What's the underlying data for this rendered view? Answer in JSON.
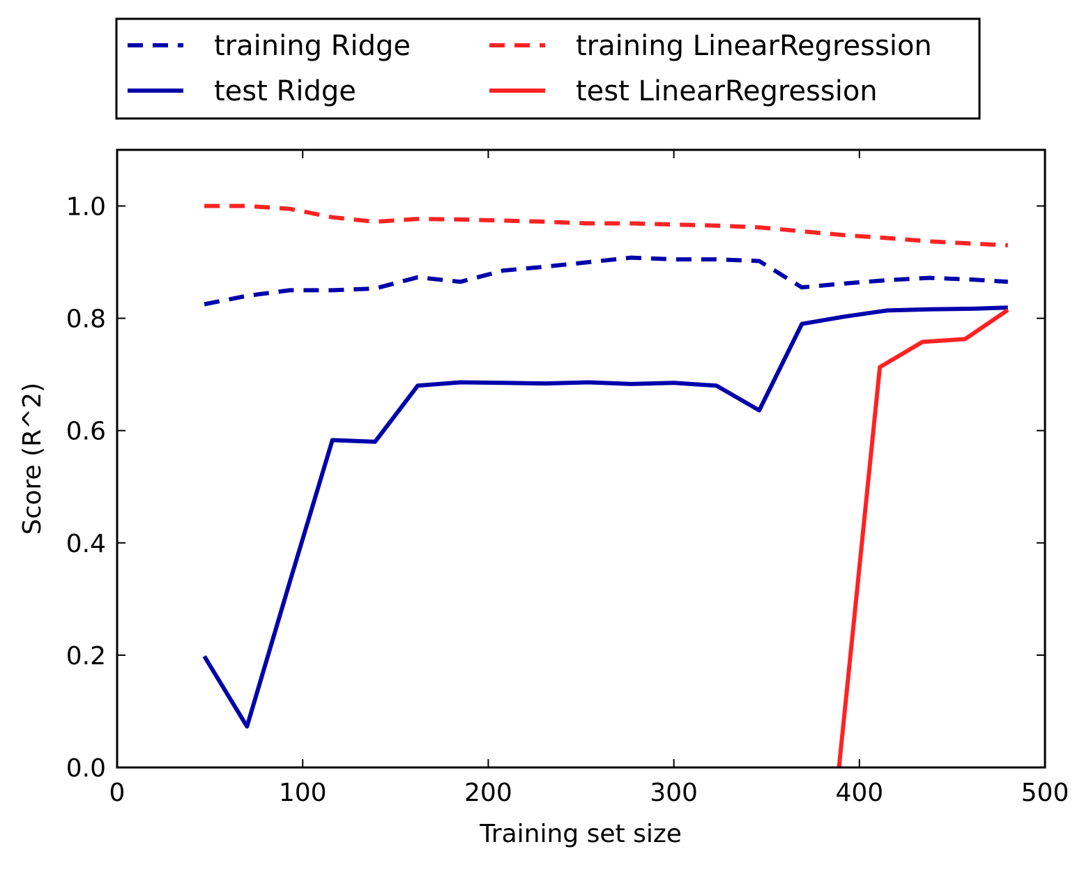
{
  "chart_data": {
    "type": "line",
    "title": "",
    "xlabel": "Training set size",
    "ylabel": "Score (R^2)",
    "xlim": [
      0,
      500
    ],
    "ylim": [
      0,
      1.1
    ],
    "xticks": [
      0,
      100,
      200,
      300,
      400,
      500
    ],
    "xtick_labels": [
      "0",
      "100",
      "200",
      "300",
      "400",
      "500"
    ],
    "yticks": [
      0.0,
      0.2,
      0.4,
      0.6,
      0.8,
      1.0
    ],
    "ytick_labels": [
      "0.0",
      "0.2",
      "0.4",
      "0.6",
      "0.8",
      "1.0"
    ],
    "grid": false,
    "legend_position": "above plot, two columns",
    "series": [
      {
        "name": "training Ridge",
        "color": "#0000aa",
        "style": "dashed",
        "x": [
          47,
          70,
          93,
          116,
          139,
          162,
          185,
          208,
          231,
          254,
          277,
          300,
          323,
          346,
          369,
          392,
          415,
          438,
          461,
          480
        ],
        "y": [
          0.825,
          0.84,
          0.85,
          0.85,
          0.853,
          0.873,
          0.865,
          0.885,
          0.892,
          0.9,
          0.908,
          0.905,
          0.905,
          0.902,
          0.855,
          0.862,
          0.868,
          0.872,
          0.869,
          0.865
        ]
      },
      {
        "name": "test Ridge",
        "color": "#0000aa",
        "style": "solid",
        "x": [
          47,
          70,
          93,
          116,
          139,
          162,
          185,
          208,
          231,
          254,
          277,
          300,
          323,
          346,
          369,
          392,
          415,
          438,
          461,
          480
        ],
        "y": [
          0.198,
          0.073,
          0.33,
          0.583,
          0.58,
          0.68,
          0.686,
          0.685,
          0.684,
          0.686,
          0.683,
          0.685,
          0.68,
          0.636,
          0.79,
          0.803,
          0.814,
          0.816,
          0.817,
          0.819
        ]
      },
      {
        "name": "training LinearRegression",
        "color": "#ff2222",
        "style": "dashed",
        "x": [
          47,
          70,
          93,
          116,
          139,
          162,
          185,
          208,
          231,
          254,
          277,
          300,
          323,
          346,
          369,
          392,
          415,
          438,
          461,
          480
        ],
        "y": [
          1.0,
          1.0,
          0.995,
          0.98,
          0.972,
          0.977,
          0.976,
          0.974,
          0.972,
          0.969,
          0.969,
          0.967,
          0.965,
          0.962,
          0.955,
          0.948,
          0.943,
          0.937,
          0.933,
          0.93
        ]
      },
      {
        "name": "test LinearRegression",
        "color": "#ff2222",
        "style": "solid",
        "x": [
          389,
          411,
          434,
          457,
          480
        ],
        "y": [
          0.0,
          0.713,
          0.758,
          0.763,
          0.815
        ]
      }
    ]
  }
}
